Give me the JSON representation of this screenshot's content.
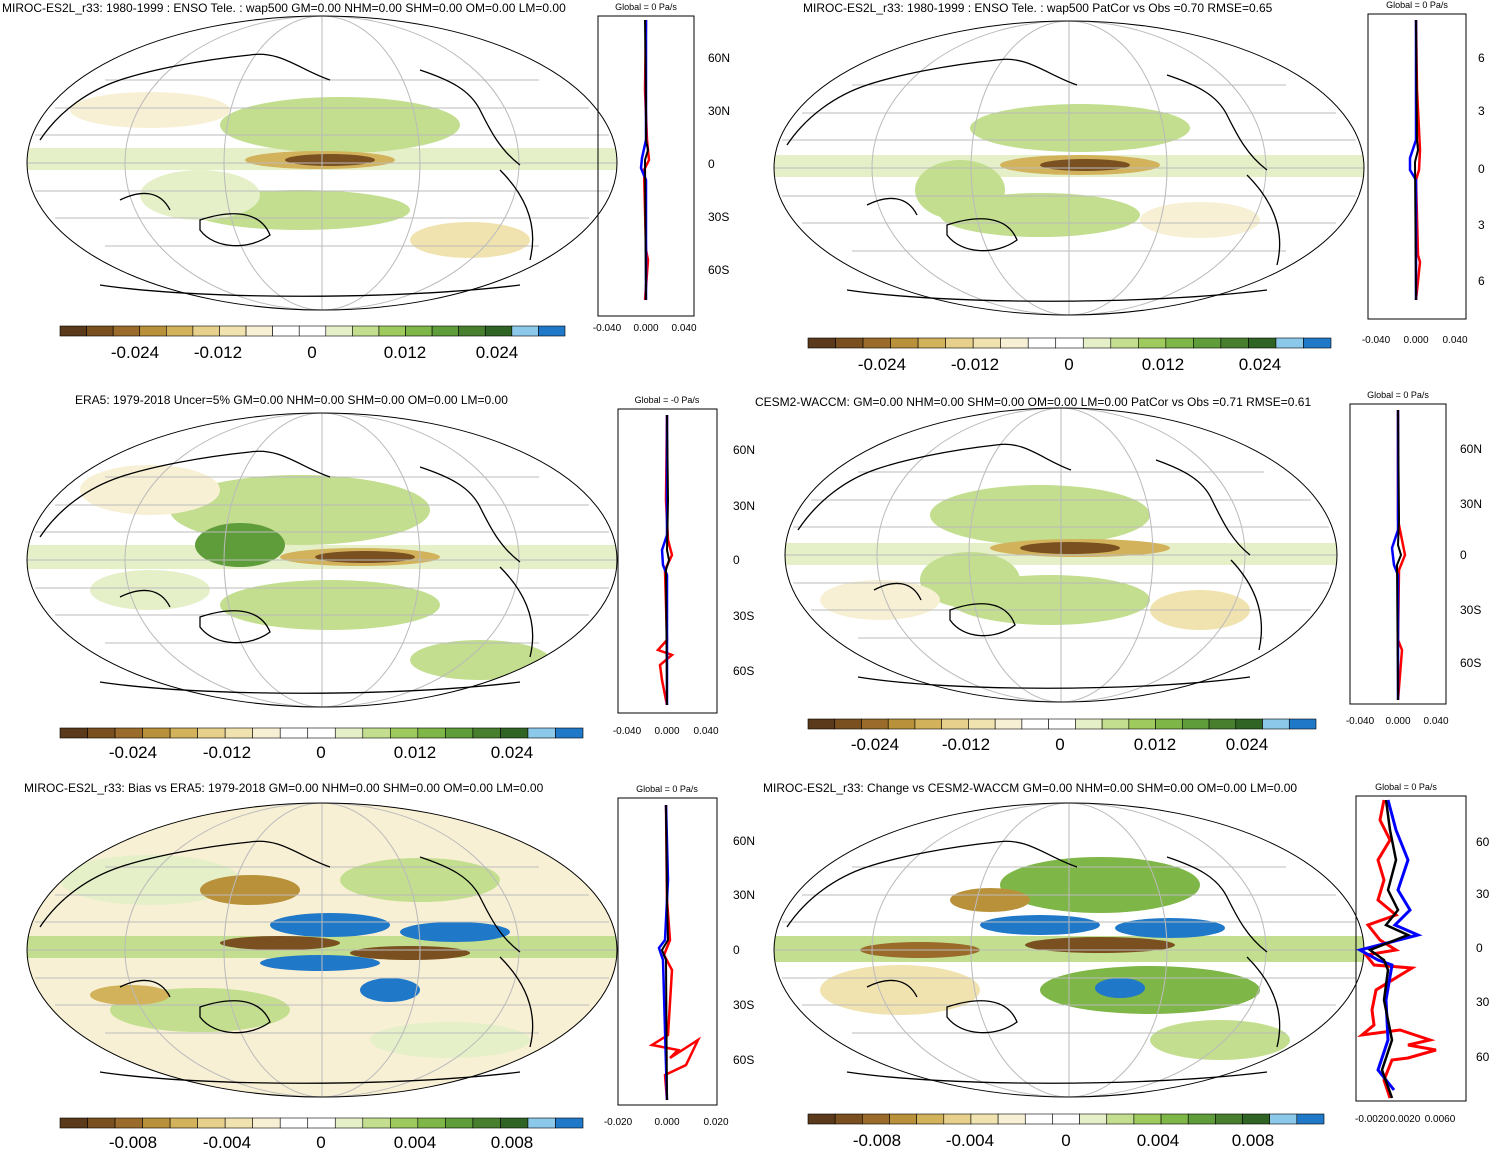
{
  "colors": {
    "palette": [
      "#5a3a1a",
      "#7a5020",
      "#9a6b2a",
      "#b9913a",
      "#d2b25a",
      "#e6d08c",
      "#f1e3b0",
      "#f8f0d4",
      "#ffffff",
      "#ffffff",
      "#e6f0c8",
      "#c2de8e",
      "#9fcb5e",
      "#7fb648",
      "#5f9c3a",
      "#477f2e",
      "#2f6424",
      "#8cc8ea",
      "#1f78c8"
    ],
    "land": "#000000",
    "grid": "#bbbbbb",
    "line_red": "#ff0000",
    "line_blue": "#0000ff",
    "line_black": "#000000"
  },
  "panels": [
    {
      "title": "MIROC-ES2L_r33: 1980-1999 : ENSO Tele. : wap500 GM=0.00 NHM=0.00 SHM=0.00 OM=0.00 LM=0.00",
      "colorbar_ticks": [
        "-0.024",
        "-0.012",
        "0",
        "0.012",
        "0.024"
      ],
      "zonal_title": "Global = 0 Pa/s",
      "zonal_xticks": [
        "-0.040",
        "0.000",
        "0.040"
      ],
      "lat_labels": [
        "60N",
        "30N",
        "0",
        "30S",
        "60S"
      ]
    },
    {
      "title": "MIROC-ES2L_r33: 1980-1999 : ENSO Tele. : wap500 PatCor vs Obs =0.70 RMSE=0.65",
      "colorbar_ticks": [
        "-0.024",
        "-0.012",
        "0",
        "0.012",
        "0.024"
      ],
      "zonal_title": "Global = 0 Pa/s",
      "zonal_xticks": [
        "-0.040",
        "0.000",
        "0.040"
      ],
      "lat_labels": [
        "6",
        "3",
        "0",
        "3",
        "6"
      ]
    },
    {
      "title": "ERA5: 1979-2018 Uncer=5% GM=0.00 NHM=0.00 SHM=0.00 OM=0.00 LM=0.00",
      "colorbar_ticks": [
        "-0.024",
        "-0.012",
        "0",
        "0.012",
        "0.024"
      ],
      "zonal_title": "Global = -0 Pa/s",
      "zonal_xticks": [
        "-0.040",
        "0.000",
        "0.040"
      ],
      "lat_labels": [
        "60N",
        "30N",
        "0",
        "30S",
        "60S"
      ]
    },
    {
      "title": "CESM2-WACCM: GM=0.00 NHM=0.00 SHM=0.00 OM=0.00 LM=0.00 PatCor vs Obs =0.71 RMSE=0.61",
      "colorbar_ticks": [
        "-0.024",
        "-0.012",
        "0",
        "0.012",
        "0.024"
      ],
      "zonal_title": "Global = 0 Pa/s",
      "zonal_xticks": [
        "-0.040",
        "0.000",
        "0.040"
      ],
      "lat_labels": [
        "60N",
        "30N",
        "0",
        "30S",
        "60S"
      ]
    },
    {
      "title": "MIROC-ES2L_r33: Bias vs ERA5: 1979-2018 GM=0.00 NHM=0.00 SHM=0.00 OM=0.00 LM=0.00",
      "colorbar_ticks": [
        "-0.008",
        "-0.004",
        "0",
        "0.004",
        "0.008"
      ],
      "zonal_title": "Global = 0 Pa/s",
      "zonal_xticks": [
        "-0.020",
        "0.000",
        "0.020"
      ],
      "lat_labels": [
        "60N",
        "30N",
        "0",
        "30S",
        "60S"
      ]
    },
    {
      "title": "MIROC-ES2L_r33: Change vs CESM2-WACCM GM=0.00 NHM=0.00 SHM=0.00 OM=0.00 LM=0.00",
      "colorbar_ticks": [
        "-0.008",
        "-0.004",
        "0",
        "0.004",
        "0.008"
      ],
      "zonal_title": "Global = 0 Pa/s",
      "zonal_xticks": [
        "-0.0020",
        "0.0020",
        "0.0060"
      ],
      "lat_labels": [
        "60",
        "30",
        "0",
        "30",
        "60"
      ]
    }
  ]
}
